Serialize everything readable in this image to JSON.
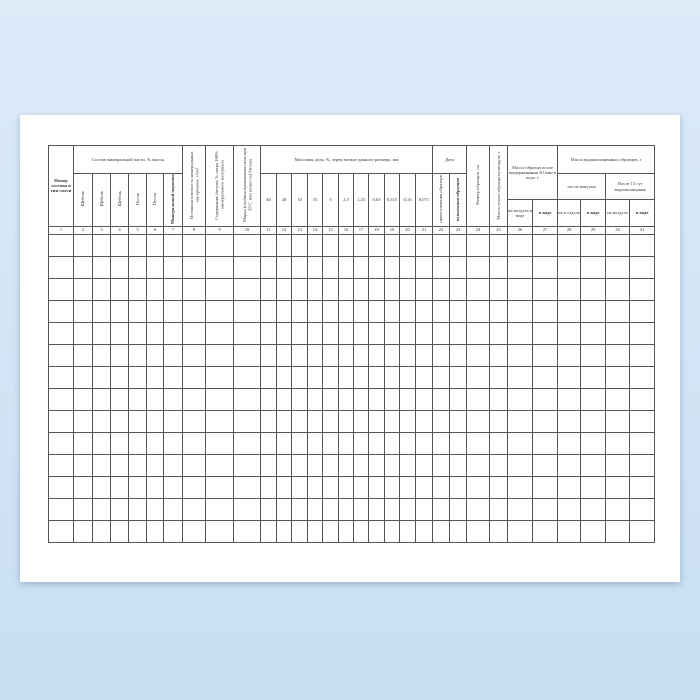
{
  "header": {
    "col1": "Номер состава и тип смеси",
    "mineral_group": "Состав минеральной части, % массы",
    "mineral_cols": [
      "Щебень",
      "Щебень",
      "Щебень",
      "Песок",
      "Песок",
      "Минеральный порошок"
    ],
    "col8": "Истинная плотность минеральных материалов, г/см³",
    "col9": "Содержание битума, % сверх 100% минерального материала",
    "col10": "Марка (глубина проникания иглы при 25°С или вязкость) битума",
    "grain_group": "Массовая доля, %, зерен мельче данного размера, мм",
    "grain_sizes": [
      "40",
      "20",
      "10",
      "15",
      "5",
      "2,5",
      "1,25",
      "0,63",
      "0,315",
      "0,16",
      "0,071"
    ],
    "date_group": "Дата",
    "date_cols": [
      "приготовления образцов",
      "испытания образцов"
    ],
    "col24": "Размер образцов, см",
    "col25": "Масса сухого образца на воздухе, г",
    "soak_group": "Масса образца после выдерживания 30 мин в воде, г",
    "soak_cols": [
      "на воздухе в воде",
      "в воде"
    ],
    "sat_group": "Масса водонасыщенных образцов, г",
    "vacuum": "после вакуума",
    "days15": "После 15 сут водонасыщения",
    "sat_cols": [
      "на в оздухе",
      "в воде",
      "на воздухе",
      "в воде"
    ]
  },
  "column_numbers": [
    "1",
    "2",
    "3",
    "4",
    "5",
    "6",
    "7",
    "8",
    "9",
    "10",
    "11",
    "12",
    "13",
    "14",
    "15",
    "16",
    "17",
    "18",
    "19",
    "20",
    "21",
    "22",
    "23",
    "24",
    "25",
    "26",
    "27",
    "28",
    "29",
    "30",
    "31"
  ],
  "row_count": 14
}
